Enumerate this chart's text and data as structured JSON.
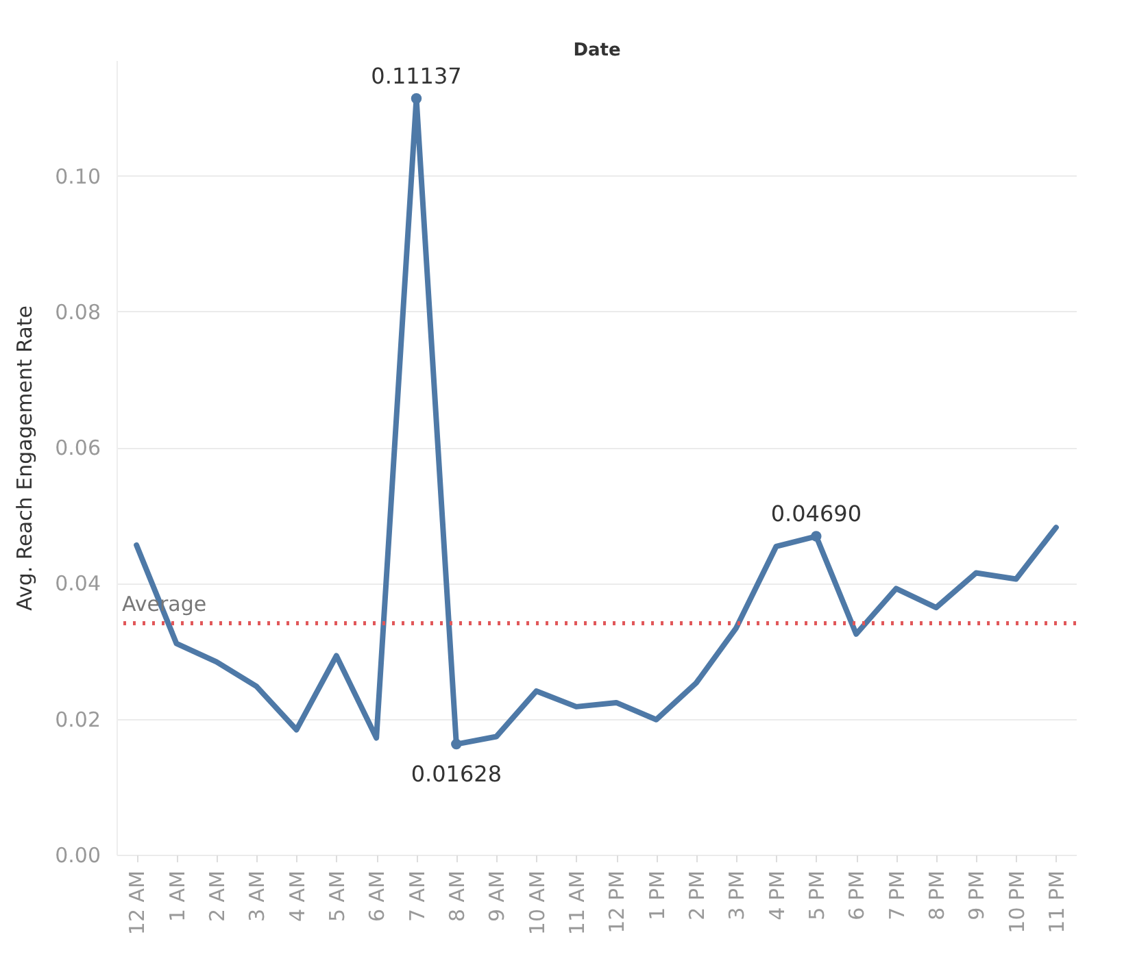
{
  "chart_data": {
    "type": "line",
    "xlabel": "Date",
    "ylabel": "Avg. Reach Engagement Rate",
    "categories": [
      "12 AM",
      "1 AM",
      "2 AM",
      "3 AM",
      "4 AM",
      "5 AM",
      "6 AM",
      "7 AM",
      "8 AM",
      "9 AM",
      "10 AM",
      "11 AM",
      "12 PM",
      "1 PM",
      "2 PM",
      "3 PM",
      "4 PM",
      "5 PM",
      "6 PM",
      "7 PM",
      "8 PM",
      "9 PM",
      "10 PM",
      "11 PM"
    ],
    "series": [
      {
        "color": "#4e79a7",
        "values": [
          0.0456,
          0.0311,
          0.0284,
          0.0248,
          0.0184,
          0.0293,
          0.0172,
          0.11137,
          0.01628,
          0.0174,
          0.0241,
          0.0218,
          0.0224,
          0.0199,
          0.0253,
          0.0334,
          0.0454,
          0.0469,
          0.0325,
          0.0392,
          0.0364,
          0.0415,
          0.0406,
          0.0482
        ],
        "value_labels": [
          null,
          null,
          null,
          null,
          null,
          null,
          null,
          "0.11137",
          "0.01628",
          null,
          null,
          null,
          null,
          null,
          null,
          null,
          null,
          "0.04690",
          null,
          null,
          null,
          null,
          null,
          null
        ]
      }
    ],
    "ylim": [
      0,
      0.117
    ],
    "yticks": [
      {
        "value": 0,
        "label": "0.00"
      },
      {
        "value": 0.02,
        "label": "0.02"
      },
      {
        "value": 0.04,
        "label": "0.04"
      },
      {
        "value": 0.06,
        "label": "0.06"
      },
      {
        "value": 0.08,
        "label": "0.08"
      },
      {
        "value": 0.1,
        "label": "0.10"
      }
    ],
    "grid": "y",
    "ref_lines": [
      {
        "axis": "y",
        "value": 0.0341,
        "label": "Average",
        "color": "#e15759",
        "line_style": "dotted"
      }
    ]
  }
}
